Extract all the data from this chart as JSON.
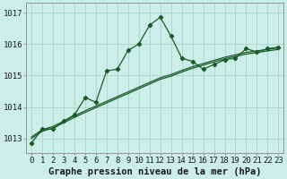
{
  "title": "Graphe pression niveau de la mer (hPa)",
  "background_color": "#cceee8",
  "grid_color": "#b0d8d0",
  "line_color": "#1a5c28",
  "x_values": [
    0,
    1,
    2,
    3,
    4,
    5,
    6,
    7,
    8,
    9,
    10,
    11,
    12,
    13,
    14,
    15,
    16,
    17,
    18,
    19,
    20,
    21,
    22,
    23
  ],
  "y_main": [
    1012.85,
    1013.3,
    1013.3,
    1013.55,
    1013.75,
    1014.3,
    1014.15,
    1015.15,
    1015.2,
    1015.8,
    1016.0,
    1016.6,
    1016.85,
    1016.25,
    1015.55,
    1015.45,
    1015.2,
    1015.35,
    1015.5,
    1015.55,
    1015.85,
    1015.75,
    1015.85,
    1015.9
  ],
  "y_line2": [
    1013.05,
    1013.28,
    1013.38,
    1013.55,
    1013.72,
    1013.88,
    1014.03,
    1014.18,
    1014.33,
    1014.48,
    1014.63,
    1014.78,
    1014.93,
    1015.03,
    1015.16,
    1015.28,
    1015.38,
    1015.48,
    1015.58,
    1015.66,
    1015.73,
    1015.78,
    1015.83,
    1015.88
  ],
  "y_line3": [
    1013.0,
    1013.23,
    1013.33,
    1013.5,
    1013.67,
    1013.83,
    1013.98,
    1014.13,
    1014.28,
    1014.43,
    1014.58,
    1014.73,
    1014.88,
    1014.98,
    1015.11,
    1015.23,
    1015.33,
    1015.43,
    1015.53,
    1015.61,
    1015.68,
    1015.73,
    1015.78,
    1015.83
  ],
  "ylim": [
    1012.55,
    1017.3
  ],
  "yticks": [
    1013,
    1014,
    1015,
    1016,
    1017
  ],
  "xlim": [
    -0.5,
    23.5
  ],
  "tick_fontsize": 6.5,
  "title_fontsize": 7.5
}
